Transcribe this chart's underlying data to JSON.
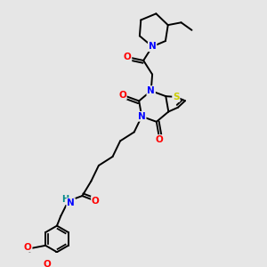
{
  "background_color": "#e6e6e6",
  "atom_colors": {
    "N": "#0000ff",
    "O": "#ff0000",
    "S": "#cccc00",
    "H": "#008888"
  },
  "bond_color": "#000000",
  "bond_width": 1.4,
  "figsize": [
    3.0,
    3.0
  ],
  "dpi": 100
}
